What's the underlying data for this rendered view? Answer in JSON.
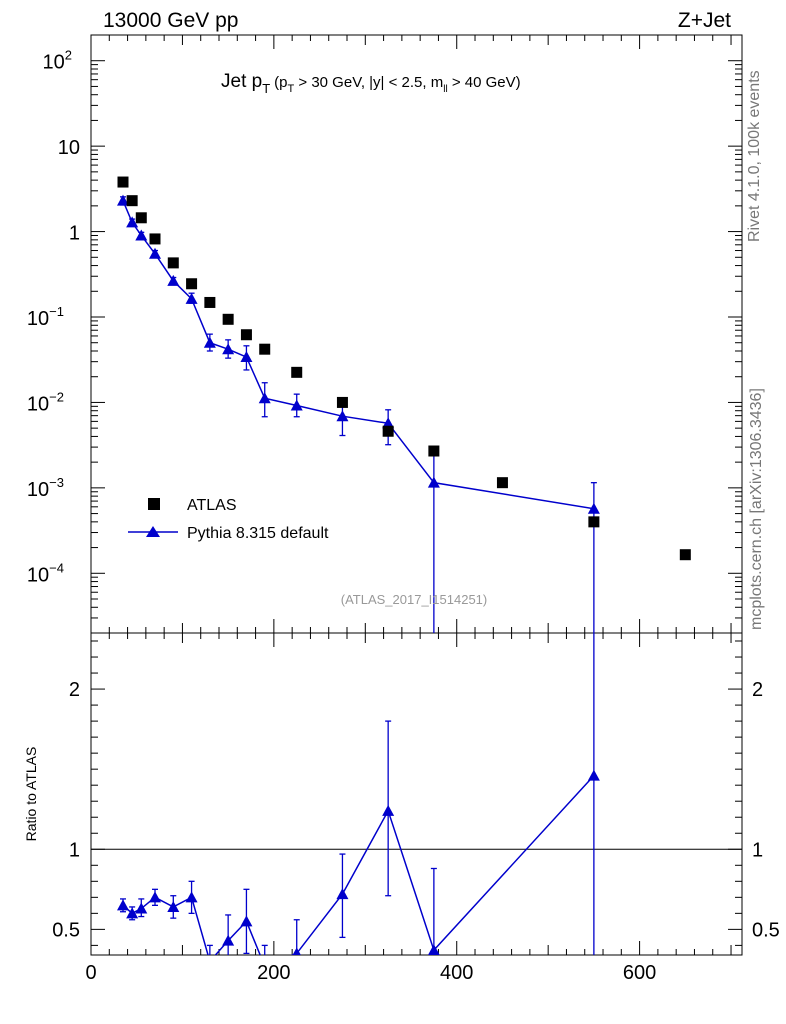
{
  "header": {
    "left": "13000 GeV pp",
    "right": "Z+Jet"
  },
  "title": {
    "main": "Jet p",
    "main_sub": "T",
    "cut_open": "(p",
    "cut_sub1": "T",
    "cut_mid": " > 30 GeV, |y| < 2.5, m",
    "cut_sub2": "ll",
    "cut_end": " > 40 GeV)"
  },
  "side_labels": {
    "rivet": "Rivet 4.1.0,  100k events",
    "mcplots": "mcplots.cern.ch [arXiv:1306.3436]"
  },
  "analysis_id": "(ATLAS_2017_I1514251)",
  "legend": {
    "data": "ATLAS",
    "mc": "Pythia 8.315 default"
  },
  "colors": {
    "data": "#000000",
    "mc": "#0000cc",
    "analysis_id": "#999999",
    "side_text": "#777777"
  },
  "chart_data": [
    {
      "type": "scatter",
      "panel": "main",
      "yscale": "log",
      "xlim": [
        0,
        712
      ],
      "ylim": [
        2e-05,
        200
      ],
      "yticks": [
        {
          "value": 100,
          "base": "10",
          "exp": "2"
        },
        {
          "value": 10,
          "base": "10",
          "exp": ""
        },
        {
          "value": 1,
          "base": "1",
          "exp": ""
        },
        {
          "value": 0.1,
          "base": "10",
          "exp": "−1"
        },
        {
          "value": 0.01,
          "base": "10",
          "exp": "−2"
        },
        {
          "value": 0.001,
          "base": "10",
          "exp": "−3"
        },
        {
          "value": 0.0001,
          "base": "10",
          "exp": "−4"
        }
      ],
      "legend_position": "center-left",
      "series": [
        {
          "name": "ATLAS",
          "marker": "square",
          "points": [
            {
              "x": 35,
              "y": 3.8
            },
            {
              "x": 45,
              "y": 2.3
            },
            {
              "x": 55,
              "y": 1.45
            },
            {
              "x": 70,
              "y": 0.82
            },
            {
              "x": 90,
              "y": 0.43
            },
            {
              "x": 110,
              "y": 0.245
            },
            {
              "x": 130,
              "y": 0.148
            },
            {
              "x": 150,
              "y": 0.094
            },
            {
              "x": 170,
              "y": 0.062
            },
            {
              "x": 190,
              "y": 0.042
            },
            {
              "x": 225,
              "y": 0.0225
            },
            {
              "x": 275,
              "y": 0.01
            },
            {
              "x": 325,
              "y": 0.0046
            },
            {
              "x": 375,
              "y": 0.0027
            },
            {
              "x": 450,
              "y": 0.00115
            },
            {
              "x": 550,
              "y": 0.0004
            },
            {
              "x": 650,
              "y": 0.000165
            }
          ]
        },
        {
          "name": "Pythia 8.315 default",
          "marker": "triangle",
          "line": true,
          "points": [
            {
              "x": 35,
              "y": 2.3,
              "lo": 2.05,
              "hi": 2.55
            },
            {
              "x": 45,
              "y": 1.28,
              "lo": 1.16,
              "hi": 1.4
            },
            {
              "x": 55,
              "y": 0.9,
              "lo": 0.82,
              "hi": 0.98
            },
            {
              "x": 70,
              "y": 0.55,
              "lo": 0.5,
              "hi": 0.6
            },
            {
              "x": 90,
              "y": 0.265,
              "lo": 0.24,
              "hi": 0.29
            },
            {
              "x": 110,
              "y": 0.163,
              "lo": 0.145,
              "hi": 0.19
            },
            {
              "x": 130,
              "y": 0.05,
              "lo": 0.04,
              "hi": 0.063
            },
            {
              "x": 150,
              "y": 0.042,
              "lo": 0.033,
              "hi": 0.054
            },
            {
              "x": 170,
              "y": 0.034,
              "lo": 0.024,
              "hi": 0.046
            },
            {
              "x": 190,
              "y": 0.0112,
              "lo": 0.0068,
              "hi": 0.017
            },
            {
              "x": 225,
              "y": 0.0092,
              "lo": 0.0068,
              "hi": 0.0125
            },
            {
              "x": 275,
              "y": 0.0069,
              "lo": 0.0041,
              "hi": 0.0098
            },
            {
              "x": 325,
              "y": 0.0057,
              "lo": 0.0032,
              "hi": 0.0082
            },
            {
              "x": 375,
              "y": 0.00115,
              "lo": 1e-06,
              "hi": 0.0025
            },
            {
              "x": 550,
              "y": 0.00057,
              "lo": 1e-06,
              "hi": 0.00115
            }
          ]
        }
      ]
    },
    {
      "type": "line",
      "panel": "ratio",
      "ylabel": "Ratio to ATLAS",
      "xlim": [
        0,
        712
      ],
      "ylim": [
        0.34,
        2.35
      ],
      "reference_line": 1,
      "yticks": [
        0.5,
        1,
        2
      ],
      "xticks": [
        0,
        200,
        400,
        600
      ],
      "series": [
        {
          "name": "Pythia 8.315 default",
          "points": [
            {
              "x": 35,
              "y": 0.65,
              "lo": 0.61,
              "hi": 0.69
            },
            {
              "x": 45,
              "y": 0.6,
              "lo": 0.56,
              "hi": 0.64
            },
            {
              "x": 55,
              "y": 0.63,
              "lo": 0.58,
              "hi": 0.69
            },
            {
              "x": 70,
              "y": 0.7,
              "lo": 0.65,
              "hi": 0.75
            },
            {
              "x": 90,
              "y": 0.64,
              "lo": 0.57,
              "hi": 0.71
            },
            {
              "x": 110,
              "y": 0.7,
              "lo": 0.6,
              "hi": 0.8
            },
            {
              "x": 130,
              "y": 0.3,
              "lo": 0.2,
              "hi": 0.4
            },
            {
              "x": 150,
              "y": 0.43,
              "lo": 0.27,
              "hi": 0.59
            },
            {
              "x": 170,
              "y": 0.55,
              "lo": 0.35,
              "hi": 0.75
            },
            {
              "x": 190,
              "y": 0.27,
              "lo": 0.15,
              "hi": 0.4
            },
            {
              "x": 225,
              "y": 0.35,
              "lo": 0.14,
              "hi": 0.56
            },
            {
              "x": 275,
              "y": 0.72,
              "lo": 0.45,
              "hi": 0.97
            },
            {
              "x": 325,
              "y": 1.24,
              "lo": 0.71,
              "hi": 1.8
            },
            {
              "x": 375,
              "y": 0.37,
              "lo": 0.1,
              "hi": 0.88
            },
            {
              "x": 550,
              "y": 1.46,
              "lo": 0.1,
              "hi": 2.9
            }
          ]
        }
      ]
    }
  ]
}
